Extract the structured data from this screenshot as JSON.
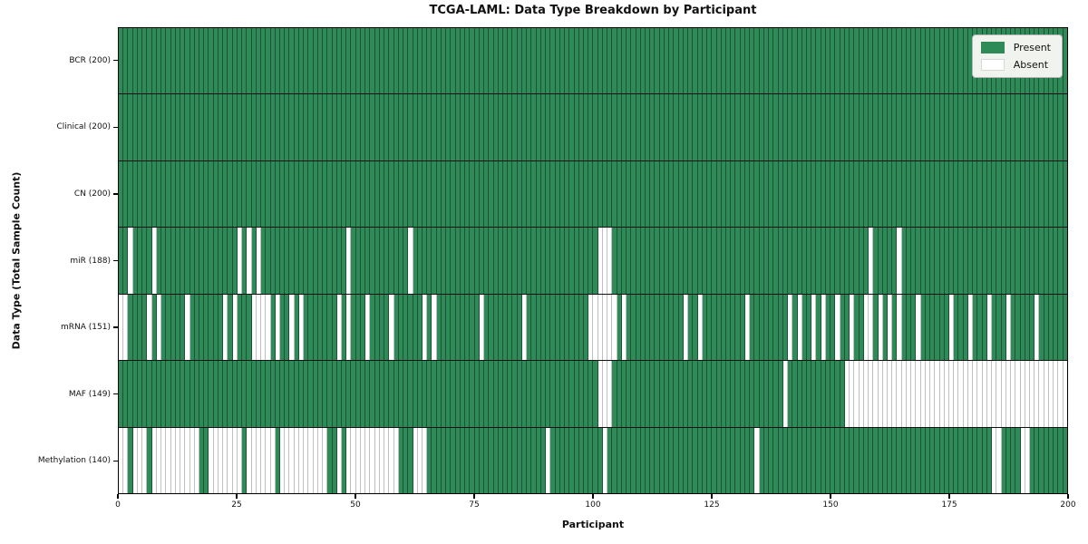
{
  "title": "TCGA-LAML: Data Type Breakdown by Participant",
  "axes": {
    "x_label": "Participant",
    "y_label": "Data Type (Total Sample Count)"
  },
  "legend": {
    "present_label": "Present",
    "absent_label": "Absent"
  },
  "colors": {
    "present": "#2e8b57",
    "absent": "#ffffff",
    "present_edge": "#1c5236",
    "absent_edge": "#c0c0c0"
  },
  "chart_data": {
    "type": "heatmap",
    "title": "TCGA-LAML: Data Type Breakdown by Participant",
    "xlabel": "Participant",
    "ylabel": "Data Type (Total Sample Count)",
    "x_range": [
      0,
      200
    ],
    "n_participants": 200,
    "x_ticks": [
      0,
      25,
      50,
      75,
      100,
      125,
      150,
      175,
      200
    ],
    "legend_position": "upper right",
    "legend_entries": [
      {
        "label": "Present",
        "color": "#2e8b57"
      },
      {
        "label": "Absent",
        "color": "#ffffff"
      }
    ],
    "rows": [
      {
        "label": "BCR (200)",
        "data_type": "BCR",
        "present_count": 200,
        "absent_participants": []
      },
      {
        "label": "Clinical (200)",
        "data_type": "Clinical",
        "present_count": 200,
        "absent_participants": []
      },
      {
        "label": "CN (200)",
        "data_type": "CN",
        "present_count": 200,
        "absent_participants": []
      },
      {
        "label": "miR (188)",
        "data_type": "miR",
        "present_count": 188,
        "absent_participants": [
          2,
          7,
          25,
          27,
          29,
          48,
          61,
          101,
          102,
          103,
          158,
          164
        ]
      },
      {
        "label": "mRNA (151)",
        "data_type": "mRNA",
        "present_count": 151,
        "absent_participants": [
          0,
          1,
          6,
          8,
          14,
          22,
          24,
          28,
          29,
          30,
          31,
          33,
          36,
          38,
          46,
          48,
          52,
          57,
          64,
          66,
          76,
          85,
          99,
          100,
          101,
          102,
          103,
          104,
          106,
          119,
          122,
          132,
          141,
          143,
          146,
          148,
          151,
          154,
          157,
          158,
          160,
          162,
          164,
          168,
          175,
          179,
          183,
          187,
          193
        ]
      },
      {
        "label": "MAF (149)",
        "data_type": "MAF",
        "present_count": 149,
        "absent_participants": [
          101,
          102,
          103,
          140,
          153,
          154,
          155,
          156,
          157,
          158,
          159,
          160,
          161,
          162,
          163,
          164,
          165,
          166,
          167,
          168,
          169,
          170,
          171,
          172,
          173,
          174,
          175,
          176,
          177,
          178,
          179,
          180,
          181,
          182,
          183,
          184,
          185,
          186,
          187,
          188,
          189,
          190,
          191,
          192,
          193,
          194,
          195,
          196,
          197,
          198,
          199
        ]
      },
      {
        "label": "Methylation (140)",
        "data_type": "Methylation",
        "present_count": 140,
        "absent_participants": [
          0,
          1,
          3,
          4,
          5,
          7,
          8,
          9,
          10,
          11,
          12,
          13,
          14,
          15,
          16,
          19,
          20,
          21,
          22,
          23,
          24,
          25,
          27,
          28,
          29,
          30,
          31,
          32,
          34,
          35,
          36,
          37,
          38,
          39,
          40,
          41,
          42,
          43,
          46,
          48,
          49,
          50,
          51,
          52,
          53,
          54,
          55,
          56,
          57,
          58,
          62,
          63,
          64,
          90,
          102,
          134,
          184,
          185,
          190,
          191
        ]
      }
    ]
  }
}
